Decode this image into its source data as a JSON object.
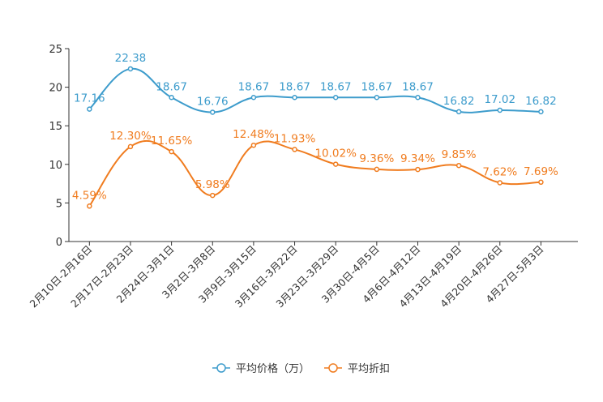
{
  "chart_data": {
    "type": "line",
    "title": "",
    "xlabel": "",
    "ylabel": "",
    "ylim": [
      0,
      25
    ],
    "yticks": [
      0,
      5,
      10,
      15,
      20,
      25
    ],
    "grid": false,
    "legend_position": "bottom-center",
    "categories": [
      "2月10日-2月16日",
      "2月17日-2月23日",
      "2月24日-3月1日",
      "3月2日-3月8日",
      "3月9日-3月15日",
      "3月16日-3月22日",
      "3月23日-3月29日",
      "3月30日-4月5日",
      "4月6日-4月12日",
      "4月13日-4月19日",
      "4月20日-4月26日",
      "4月27日-5月3日"
    ],
    "series": [
      {
        "name": "平均价格（万）",
        "color": "#3d9ccc",
        "values": [
          17.16,
          22.38,
          18.67,
          16.76,
          18.67,
          18.67,
          18.67,
          18.67,
          18.67,
          16.82,
          17.02,
          16.82
        ],
        "labels": [
          "17.16",
          "22.38",
          "18.67",
          "16.76",
          "18.67",
          "18.67",
          "18.67",
          "18.67",
          "18.67",
          "16.82",
          "17.02",
          "16.82"
        ]
      },
      {
        "name": "平均折扣",
        "color": "#f07c1f",
        "values": [
          4.59,
          12.3,
          11.65,
          5.98,
          12.48,
          11.93,
          10.02,
          9.36,
          9.34,
          9.85,
          7.62,
          7.69
        ],
        "labels": [
          "4.59%",
          "12.30%",
          "11.65%",
          "5.98%",
          "12.48%",
          "11.93%",
          "10.02%",
          "9.36%",
          "9.34%",
          "9.85%",
          "7.62%",
          "7.69%"
        ]
      }
    ]
  }
}
